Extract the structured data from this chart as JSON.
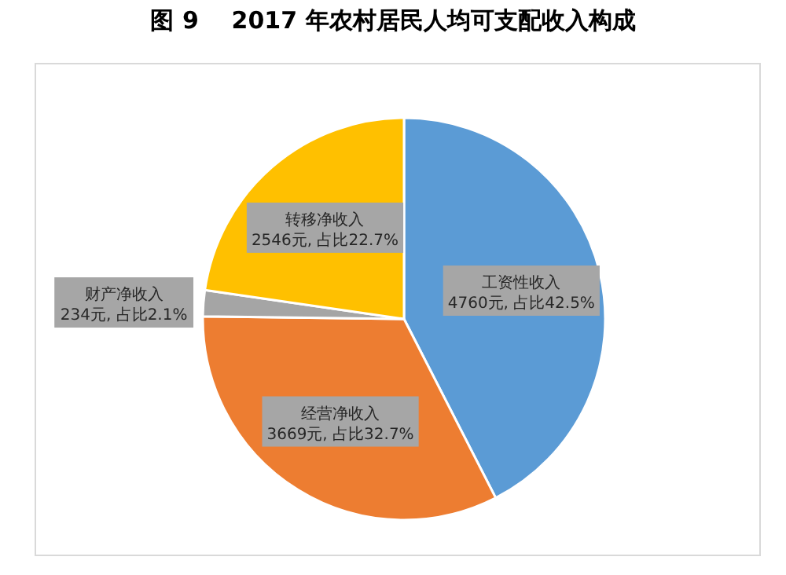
{
  "chart_data": {
    "type": "pie",
    "title": "图 9    2017 年农村居民人均可支配收入构成",
    "categories": [
      "工资性收入",
      "经营净收入",
      "财产净收入",
      "转移净收入"
    ],
    "values": [
      4760,
      3669,
      234,
      2546
    ],
    "colors": [
      "#5b9bd5",
      "#ed7d31",
      "#a5a5a5",
      "#ffc000"
    ],
    "value_labels": [
      "4760元, 占比42.5%",
      "3669元, 占比32.7%",
      "234元, 占比2.1%",
      "2546元, 占比22.7%"
    ],
    "legend": false
  }
}
